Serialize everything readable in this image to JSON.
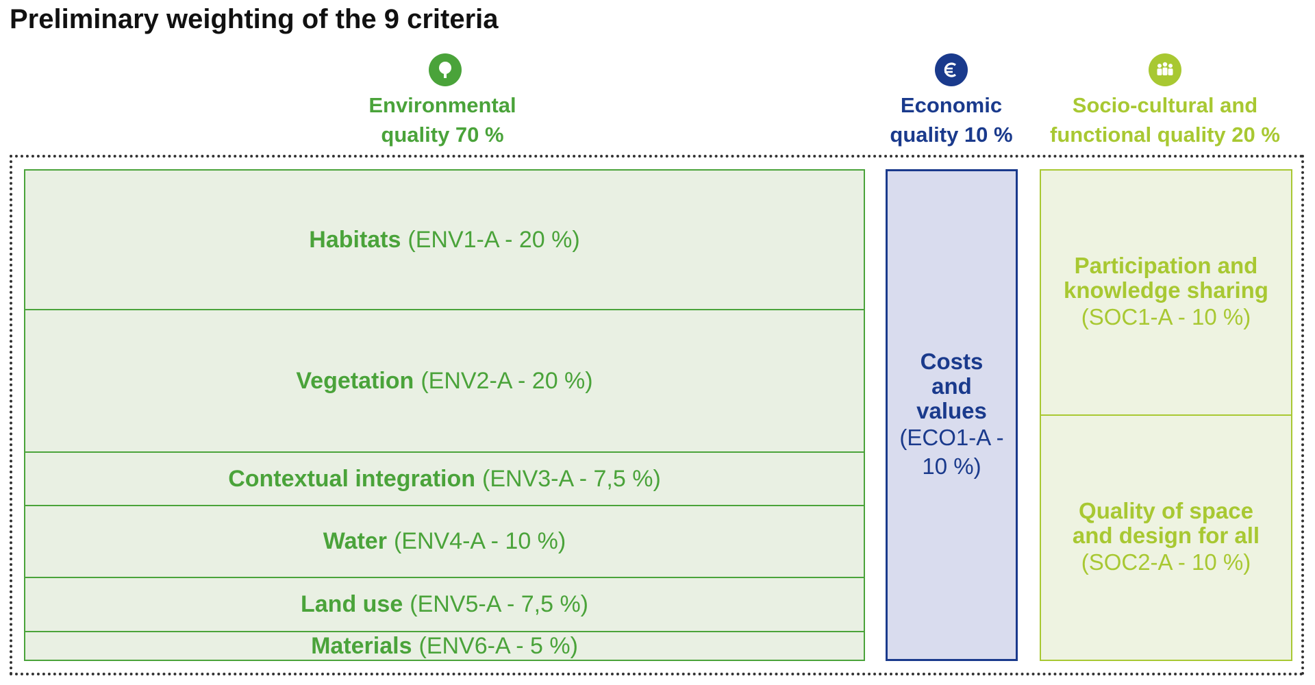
{
  "title": "Preliminary weighting of the 9 criteria",
  "colors": {
    "environmental": "#4aa33a",
    "economic": "#1a3a8c",
    "socio_cultural": "#a8c832"
  },
  "categories": {
    "environmental": {
      "icon": "tree-icon",
      "line1": "Environmental",
      "line2": "quality 70 %"
    },
    "economic": {
      "icon": "euro-icon",
      "line1": "Economic",
      "line2": "quality 10 %"
    },
    "socio_cultural": {
      "icon": "people-group-icon",
      "line1": "Socio-cultural and",
      "line2": "functional quality 20 %"
    }
  },
  "environmental_criteria": [
    {
      "name": "Habitats",
      "code": "(ENV1-A - 20 %)"
    },
    {
      "name": "Vegetation",
      "code": "(ENV2-A - 20 %)"
    },
    {
      "name": "Contextual integration",
      "code": "(ENV3-A - 7,5 %)"
    },
    {
      "name": "Water",
      "code": "(ENV4-A - 10 %)"
    },
    {
      "name": "Land use",
      "code": "(ENV5-A - 7,5 %)"
    },
    {
      "name": "Materials",
      "code": "(ENV6-A - 5 %)"
    }
  ],
  "economic_criteria": [
    {
      "name": "Costs\nand\nvalues",
      "code": "(ECO1-A - 10 %)"
    }
  ],
  "socio_cultural_criteria": [
    {
      "name": "Participation and\nknowledge sharing",
      "code": "(SOC1-A - 10 %)"
    },
    {
      "name": "Quality of space\nand design for all",
      "code": "(SOC2-A - 10 %)"
    }
  ]
}
